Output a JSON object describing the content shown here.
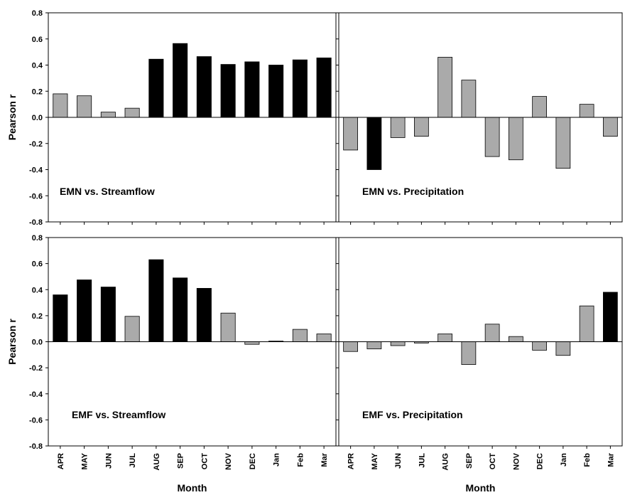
{
  "chart_data": [
    {
      "type": "bar",
      "title": "EMN vs. Streamflow",
      "ylabel": "Pearson r",
      "xlabel": "",
      "ylim": [
        -0.8,
        0.8
      ],
      "yticks": [
        "0.8",
        "0.6",
        "0.4",
        "0.2",
        "0.0",
        "-0.2",
        "-0.4",
        "-0.6",
        "-0.8"
      ],
      "categories": [
        "APR",
        "MAY",
        "JUN",
        "JUL",
        "AUG",
        "SEP",
        "OCT",
        "NOV",
        "DEC",
        "Jan",
        "Feb",
        "Mar"
      ],
      "values": [
        0.18,
        0.165,
        0.04,
        0.07,
        0.445,
        0.565,
        0.465,
        0.405,
        0.425,
        0.4,
        0.44,
        0.455
      ],
      "significant": [
        false,
        false,
        false,
        false,
        true,
        true,
        true,
        true,
        true,
        true,
        true,
        true
      ]
    },
    {
      "type": "bar",
      "title": "EMN vs. Precipitation",
      "ylabel": "",
      "xlabel": "",
      "ylim": [
        -0.8,
        0.8
      ],
      "categories": [
        "APR",
        "MAY",
        "JUN",
        "JUL",
        "AUG",
        "SEP",
        "OCT",
        "NOV",
        "DEC",
        "Jan",
        "Feb",
        "Mar"
      ],
      "values": [
        -0.25,
        -0.4,
        -0.155,
        -0.145,
        0.46,
        0.285,
        -0.3,
        -0.325,
        0.16,
        -0.39,
        0.1,
        -0.145
      ],
      "significant": [
        false,
        true,
        false,
        false,
        false,
        false,
        false,
        false,
        false,
        false,
        false,
        false
      ]
    },
    {
      "type": "bar",
      "title": "EMF vs. Streamflow",
      "ylabel": "Pearson r",
      "xlabel": "Month",
      "ylim": [
        -0.8,
        0.8
      ],
      "yticks": [
        "0.8",
        "0.6",
        "0.4",
        "0.2",
        "0.0",
        "-0.2",
        "-0.4",
        "-0.6",
        "-0.8"
      ],
      "categories": [
        "APR",
        "MAY",
        "JUN",
        "JUL",
        "AUG",
        "SEP",
        "OCT",
        "NOV",
        "DEC",
        "Jan",
        "Feb",
        "Mar"
      ],
      "values": [
        0.36,
        0.475,
        0.42,
        0.195,
        0.63,
        0.49,
        0.41,
        0.22,
        -0.02,
        0.005,
        0.095,
        0.06
      ],
      "significant": [
        true,
        true,
        true,
        false,
        true,
        true,
        true,
        false,
        false,
        false,
        false,
        false
      ]
    },
    {
      "type": "bar",
      "title": "EMF vs. Precipitation",
      "ylabel": "",
      "xlabel": "Month",
      "ylim": [
        -0.8,
        0.8
      ],
      "categories": [
        "APR",
        "MAY",
        "JUN",
        "JUL",
        "AUG",
        "SEP",
        "OCT",
        "NOV",
        "DEC",
        "Jan",
        "Feb",
        "Mar"
      ],
      "values": [
        -0.075,
        -0.055,
        -0.03,
        -0.01,
        0.06,
        -0.175,
        0.135,
        0.04,
        -0.065,
        -0.105,
        0.275,
        0.38
      ],
      "significant": [
        false,
        false,
        false,
        false,
        false,
        false,
        false,
        false,
        false,
        false,
        false,
        true
      ]
    }
  ],
  "colors": {
    "significant": "#000000",
    "not_significant": "#aaaaaa",
    "axis": "#000000"
  }
}
